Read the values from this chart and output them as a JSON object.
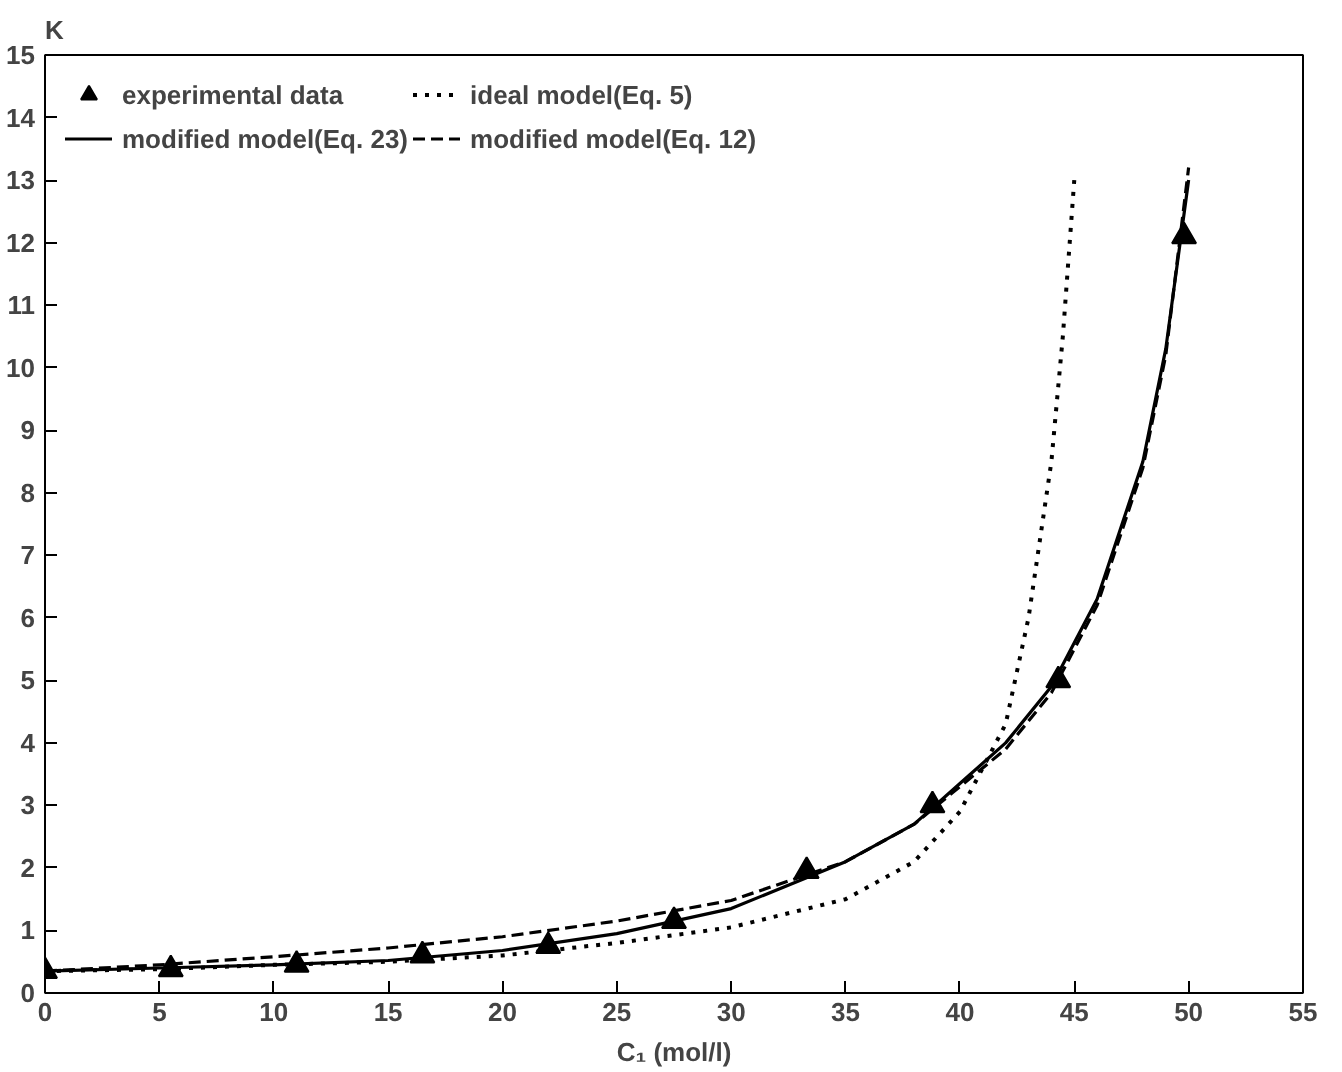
{
  "chart_data": {
    "type": "line",
    "xlabel": "C₁ (mol/l)",
    "ylabel": "K",
    "xlim": [
      0,
      55
    ],
    "ylim": [
      0,
      15
    ],
    "xticks": [
      0,
      5,
      10,
      15,
      20,
      25,
      30,
      35,
      40,
      45,
      50,
      55
    ],
    "yticks": [
      0,
      1,
      2,
      3,
      4,
      5,
      6,
      7,
      8,
      9,
      10,
      11,
      12,
      13,
      14,
      15
    ],
    "grid": false,
    "legend": "top left",
    "series": [
      {
        "name": "experimental data",
        "type": "scatter",
        "marker": "triangle",
        "color": "#000000",
        "x": [
          0,
          5.5,
          11,
          16.5,
          22,
          27.5,
          33.3,
          38.8,
          44.3,
          49.8
        ],
        "values": [
          0.35,
          0.38,
          0.45,
          0.6,
          0.75,
          1.15,
          1.95,
          3.0,
          5.0,
          12.1
        ]
      },
      {
        "name": "ideal model(Eq. 5)",
        "line_style": "dotted",
        "color": "#000000",
        "x": [
          0,
          5,
          10,
          15,
          20,
          25,
          30,
          35,
          38,
          40,
          42,
          43,
          44,
          44.5,
          45
        ],
        "values": [
          0.35,
          0.38,
          0.45,
          0.5,
          0.6,
          0.8,
          1.05,
          1.5,
          2.1,
          2.9,
          4.3,
          6.0,
          8.5,
          10.5,
          13.0
        ]
      },
      {
        "name": "modified model(Eq. 23)",
        "line_style": "solid",
        "color": "#000000",
        "x": [
          0,
          5,
          10,
          15,
          20,
          25,
          30,
          35,
          38,
          40,
          42,
          44,
          46,
          48,
          49,
          50
        ],
        "values": [
          0.35,
          0.4,
          0.45,
          0.52,
          0.68,
          0.95,
          1.35,
          2.1,
          2.7,
          3.35,
          4.0,
          4.9,
          6.3,
          8.5,
          10.3,
          13.0
        ]
      },
      {
        "name": "modified model(Eq. 12)",
        "line_style": "dashed",
        "color": "#000000",
        "x": [
          0,
          5,
          10,
          15,
          20,
          25,
          30,
          35,
          38,
          40,
          42,
          44,
          46,
          48,
          49,
          50
        ],
        "values": [
          0.35,
          0.45,
          0.58,
          0.72,
          0.9,
          1.15,
          1.48,
          2.1,
          2.7,
          3.3,
          3.9,
          4.8,
          6.2,
          8.4,
          10.2,
          13.2
        ]
      }
    ]
  }
}
